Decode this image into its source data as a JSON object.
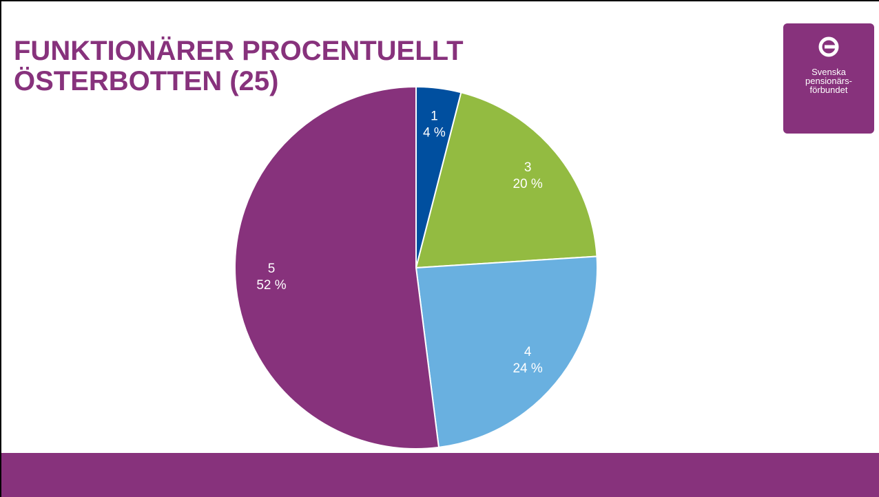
{
  "chart_data": {
    "type": "pie",
    "title": "FUNKTIONÄRER PROCENTUELLT ÖSTERBOTTEN (25)",
    "categories": [
      "1",
      "3",
      "4",
      "5"
    ],
    "values": [
      4,
      20,
      24,
      52
    ],
    "value_labels": [
      "4 %",
      "20 %",
      "24 %",
      "52 %"
    ],
    "colors": [
      "#004f9f",
      "#93bb41",
      "#69b0e0",
      "#87327c"
    ]
  },
  "logo": {
    "lines": [
      "Svenska",
      "pensionärs-",
      "förbundet"
    ]
  }
}
